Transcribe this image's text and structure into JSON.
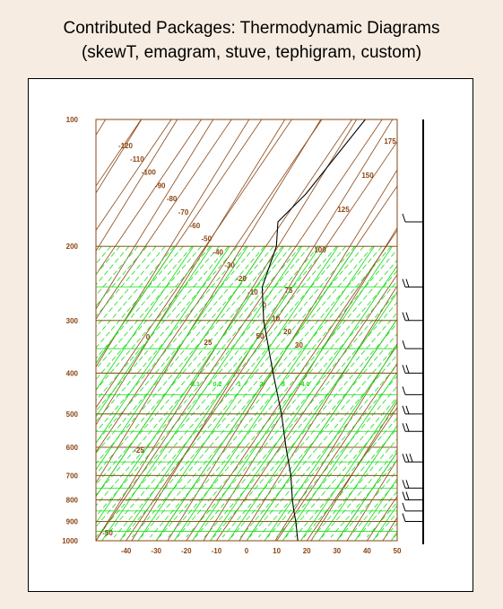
{
  "title": {
    "line1": "Contributed Packages: Thermodynamic Diagrams",
    "line2": "(skewT, emagram, stuve, tephigram, custom)"
  },
  "colors": {
    "background": "#f7ece1",
    "brown_lines": "#8b4513",
    "green_lines": "#22dd22",
    "sounding": "#000000"
  },
  "chart_data": {
    "type": "skewT",
    "title": "",
    "xlabel": "",
    "ylabel": "",
    "pressure_levels": [
      100,
      200,
      300,
      400,
      500,
      600,
      700,
      800,
      900,
      1000
    ],
    "temperature_ticks": [
      -40,
      -30,
      -20,
      -10,
      0,
      10,
      20,
      30,
      40,
      50
    ],
    "xlim": [
      -50,
      50
    ],
    "ylim": [
      1000,
      100
    ],
    "isotherm_labels_top": [
      -120,
      -110,
      -100,
      -90,
      -80,
      -70,
      -60,
      -50,
      -40,
      -30,
      -20,
      -10,
      0,
      10,
      20,
      30
    ],
    "dry_adiabat_labels": [
      175,
      150,
      125,
      100,
      75,
      50,
      25,
      0,
      -25,
      -50
    ],
    "mixing_ratio_labels": [
      "0.1",
      "0.2",
      "1",
      "2",
      "3",
      "4.0"
    ],
    "sounding_temperature": [
      {
        "p": 100,
        "t": -55.6
      },
      {
        "p": 150,
        "t": -58.5
      },
      {
        "p": 175,
        "t": -61.5
      },
      {
        "p": 200,
        "t": -56.5
      },
      {
        "p": 250,
        "t": -52
      },
      {
        "p": 300,
        "t": -44
      },
      {
        "p": 400,
        "t": -29
      },
      {
        "p": 500,
        "t": -17
      },
      {
        "p": 600,
        "t": -8
      },
      {
        "p": 700,
        "t": 0
      },
      {
        "p": 800,
        "t": 6
      },
      {
        "p": 850,
        "t": 9
      },
      {
        "p": 900,
        "t": 12
      },
      {
        "p": 1000,
        "t": 17
      }
    ],
    "wind_barbs": [
      {
        "p": 175,
        "speed": 10
      },
      {
        "p": 250,
        "speed": 15
      },
      {
        "p": 300,
        "speed": 20
      },
      {
        "p": 350,
        "speed": 10
      },
      {
        "p": 400,
        "speed": 15
      },
      {
        "p": 450,
        "speed": 10
      },
      {
        "p": 500,
        "speed": 15
      },
      {
        "p": 550,
        "speed": 20
      },
      {
        "p": 650,
        "speed": 25
      },
      {
        "p": 750,
        "speed": 20
      },
      {
        "p": 800,
        "speed": 15
      },
      {
        "p": 850,
        "speed": 10
      },
      {
        "p": 900,
        "speed": 10
      }
    ]
  }
}
